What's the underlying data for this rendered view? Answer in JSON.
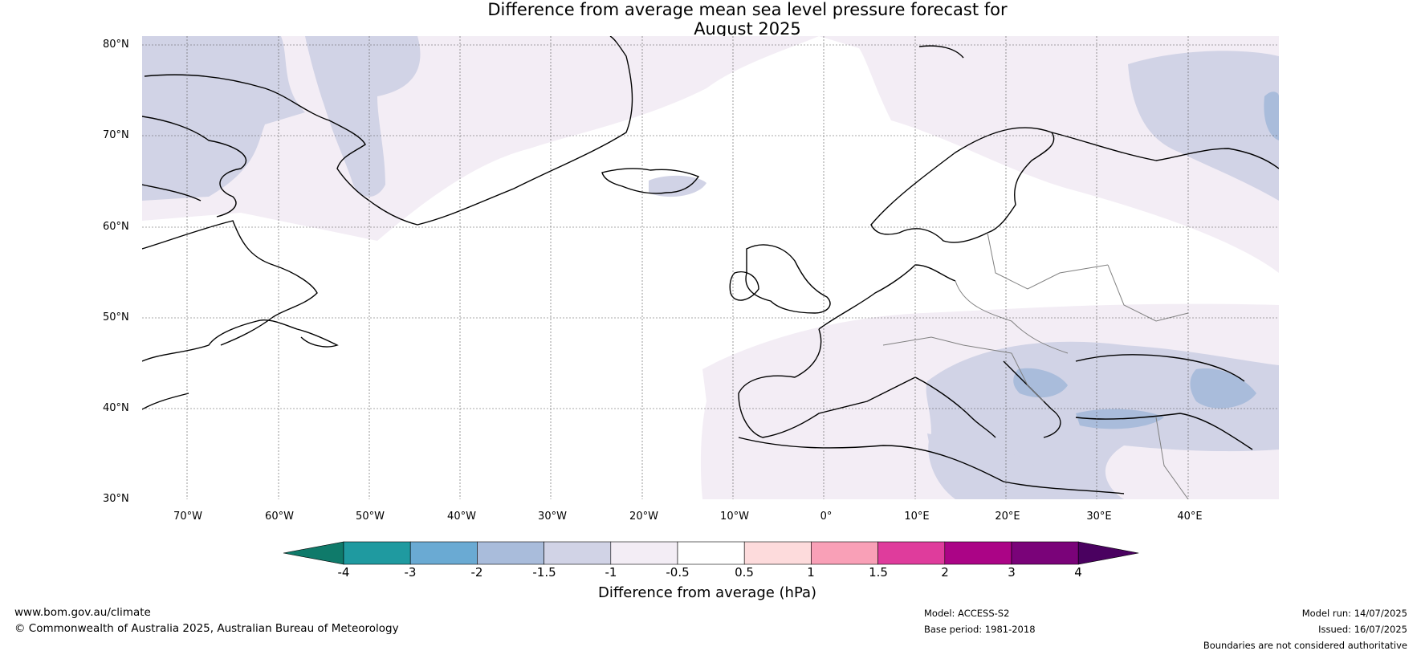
{
  "title": {
    "line1": "Difference from average mean sea level pressure forecast for",
    "line2": "August 2025"
  },
  "map": {
    "extent": {
      "lon_min": -75,
      "lon_max": 50,
      "lat_min": 30,
      "lat_max": 81
    },
    "lat_ticks": [
      {
        "value": 80,
        "label": "80°N"
      },
      {
        "value": 70,
        "label": "70°N"
      },
      {
        "value": 60,
        "label": "60°N"
      },
      {
        "value": 50,
        "label": "50°N"
      },
      {
        "value": 40,
        "label": "40°N"
      },
      {
        "value": 30,
        "label": "30°N"
      }
    ],
    "lon_ticks": [
      {
        "value": -70,
        "label": "70°W"
      },
      {
        "value": -60,
        "label": "60°W"
      },
      {
        "value": -50,
        "label": "50°W"
      },
      {
        "value": -40,
        "label": "40°W"
      },
      {
        "value": -30,
        "label": "30°W"
      },
      {
        "value": -20,
        "label": "20°W"
      },
      {
        "value": -10,
        "label": "10°W"
      },
      {
        "value": 0,
        "label": "0°"
      },
      {
        "value": 10,
        "label": "10°E"
      },
      {
        "value": 20,
        "label": "20°E"
      },
      {
        "value": 30,
        "label": "30°E"
      },
      {
        "value": 40,
        "label": "40°E"
      }
    ],
    "fill_colors": {
      "band_neg_0_5_to_neg_1": "#f3edf5",
      "band_neg_1_to_neg_1_5": "#d1d3e6",
      "band_neg_1_5_to_neg_2": "#a9bcdb"
    }
  },
  "colorbar": {
    "label": "Difference from average (hPa)",
    "ticks": [
      "-4",
      "-3",
      "-2",
      "-1.5",
      "-1",
      "-0.5",
      "0.5",
      "1",
      "1.5",
      "2",
      "3",
      "4"
    ],
    "colors": [
      "#0f7a6a",
      "#1f9aa0",
      "#6aaad3",
      "#a9bcdb",
      "#d1d3e6",
      "#f3edf5",
      "#ffffff",
      "#fddbdc",
      "#f9a0b7",
      "#df3c9c",
      "#ab0486",
      "#7a0379",
      "#4a0160"
    ]
  },
  "footer": {
    "url": "www.bom.gov.au/climate",
    "copyright": "© Commonwealth of Australia 2025, Australian Bureau of Meteorology",
    "model": "Model: ACCESS-S2",
    "base_period": "Base period: 1981-2018",
    "model_run": "Model run: 14/07/2025",
    "issued": "Issued: 16/07/2025",
    "disclaimer": "Boundaries are not considered authoritative"
  }
}
